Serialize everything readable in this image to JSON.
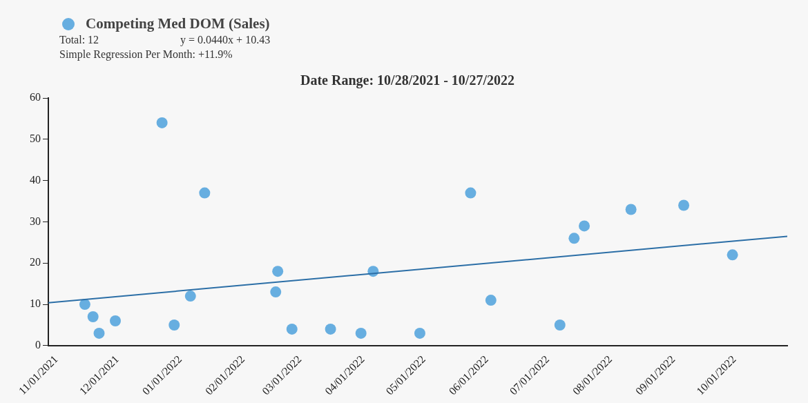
{
  "chart_data": {
    "type": "scatter",
    "title": "Date Range: 10/28/2021 - 10/27/2022",
    "annotations": [
      "Total: 12",
      "y = 0.0440x + 10.43",
      "Simple Regression Per Month: +11.9%"
    ],
    "series": [
      {
        "name": "Competing Med DOM (Sales)",
        "color": "#67aee0",
        "marker": "circle",
        "x": [
          "2021-11-15",
          "2021-11-19",
          "2021-11-22",
          "2021-11-30",
          "2021-12-23",
          "2021-12-29",
          "2022-01-06",
          "2022-01-13",
          "2022-02-17",
          "2022-02-18",
          "2022-02-25",
          "2022-03-16",
          "2022-03-31",
          "2022-04-06",
          "2022-04-29",
          "2022-05-24",
          "2022-06-03",
          "2022-07-07",
          "2022-07-14",
          "2022-07-19",
          "2022-08-11",
          "2022-09-06",
          "2022-09-30"
        ],
        "values": [
          10,
          7,
          3,
          6,
          54,
          5,
          12,
          37,
          13,
          18,
          4,
          4,
          3,
          18,
          3,
          37,
          11,
          5,
          26,
          29,
          33,
          34,
          22
        ]
      },
      {
        "type": "line",
        "color": "#2b6ea6",
        "marker": "none",
        "x": [
          "2021-10-28",
          "2022-10-27"
        ],
        "values": [
          10.4,
          26.5
        ]
      }
    ],
    "xlim": [
      "2021-10-28",
      "2022-10-27"
    ],
    "xticks": [
      {
        "value": "2021-11-01",
        "label": "11/01/2021"
      },
      {
        "value": "2021-12-01",
        "label": "12/01/2021"
      },
      {
        "value": "2022-01-01",
        "label": "01/01/2022"
      },
      {
        "value": "2022-02-01",
        "label": "02/01/2022"
      },
      {
        "value": "2022-03-01",
        "label": "03/01/2022"
      },
      {
        "value": "2022-04-01",
        "label": "04/01/2022"
      },
      {
        "value": "2022-05-01",
        "label": "05/01/2022"
      },
      {
        "value": "2022-06-01",
        "label": "06/01/2022"
      },
      {
        "value": "2022-07-01",
        "label": "07/01/2022"
      },
      {
        "value": "2022-08-01",
        "label": "08/01/2022"
      },
      {
        "value": "2022-09-01",
        "label": "09/01/2022"
      },
      {
        "value": "2022-10-01",
        "label": "10/01/2022"
      }
    ],
    "ylim": [
      0,
      60
    ],
    "yticks": [
      0,
      10,
      20,
      30,
      40,
      50,
      60
    ],
    "grid": false,
    "legend": "top left"
  }
}
